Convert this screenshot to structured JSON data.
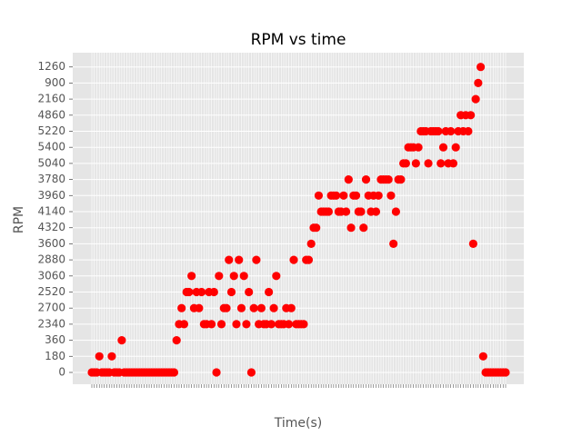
{
  "chart_data": {
    "type": "scatter",
    "title": "RPM vs time",
    "xlabel": "Time(s)",
    "ylabel": "RPM",
    "y_axis_kind": "categorical",
    "y_categories": [
      "0",
      "180",
      "360",
      "2340",
      "2700",
      "2520",
      "3060",
      "2880",
      "3600",
      "4320",
      "4140",
      "3960",
      "3780",
      "5040",
      "5400",
      "5220",
      "4860",
      "2160",
      "900",
      "1260"
    ],
    "grid": true,
    "legend": "none",
    "marker_color": "#ff0000",
    "background_color": "#e5e5e5",
    "series": [
      {
        "values": [
          "0",
          "0",
          "0",
          "180",
          "0",
          "0",
          "0",
          "0",
          "180",
          "0",
          "0",
          "0",
          "360",
          "0",
          "0",
          "0",
          "0",
          "0",
          "0",
          "0",
          "0",
          "0",
          "0",
          "0",
          "0",
          "0",
          "0",
          "0",
          "0",
          "0",
          "0",
          "0",
          "0",
          "0",
          "360",
          "2340",
          "2700",
          "2340",
          "2520",
          "2520",
          "3060",
          "2700",
          "2520",
          "2700",
          "2520",
          "2340",
          "2340",
          "2520",
          "2340",
          "2520",
          "0",
          "3060",
          "2340",
          "2700",
          "2700",
          "2880",
          "2520",
          "3060",
          "2340",
          "2880",
          "2700",
          "3060",
          "2340",
          "2520",
          "0",
          "2700",
          "2880",
          "2340",
          "2700",
          "2340",
          "2340",
          "2520",
          "2340",
          "2700",
          "3060",
          "2340",
          "2340",
          "2340",
          "2700",
          "2340",
          "2700",
          "2880",
          "2340",
          "2340",
          "2340",
          "2340",
          "2880",
          "2880",
          "3600",
          "4320",
          "4320",
          "3960",
          "4140",
          "4140",
          "4140",
          "4140",
          "3960",
          "3960",
          "3960",
          "4140",
          "4140",
          "3960",
          "4140",
          "3780",
          "4320",
          "3960",
          "3960",
          "4140",
          "4140",
          "4320",
          "3780",
          "3960",
          "4140",
          "3960",
          "4140",
          "3960",
          "3780",
          "3780",
          "3780",
          "3780",
          "3960",
          "3600",
          "4140",
          "3780",
          "3780",
          "5040",
          "5040",
          "5400",
          "5400",
          "5400",
          "5040",
          "5400",
          "5220",
          "5220",
          "5220",
          "5040",
          "5220",
          "5220",
          "5220",
          "5220",
          "5040",
          "5400",
          "5220",
          "5040",
          "5220",
          "5040",
          "5400",
          "5220",
          "4860",
          "5220",
          "4860",
          "5220",
          "4860",
          "3600",
          "2160",
          "900",
          "1260",
          "180",
          "0",
          "0",
          "0",
          "0",
          "0",
          "0",
          "0",
          "0",
          "0"
        ]
      }
    ]
  }
}
